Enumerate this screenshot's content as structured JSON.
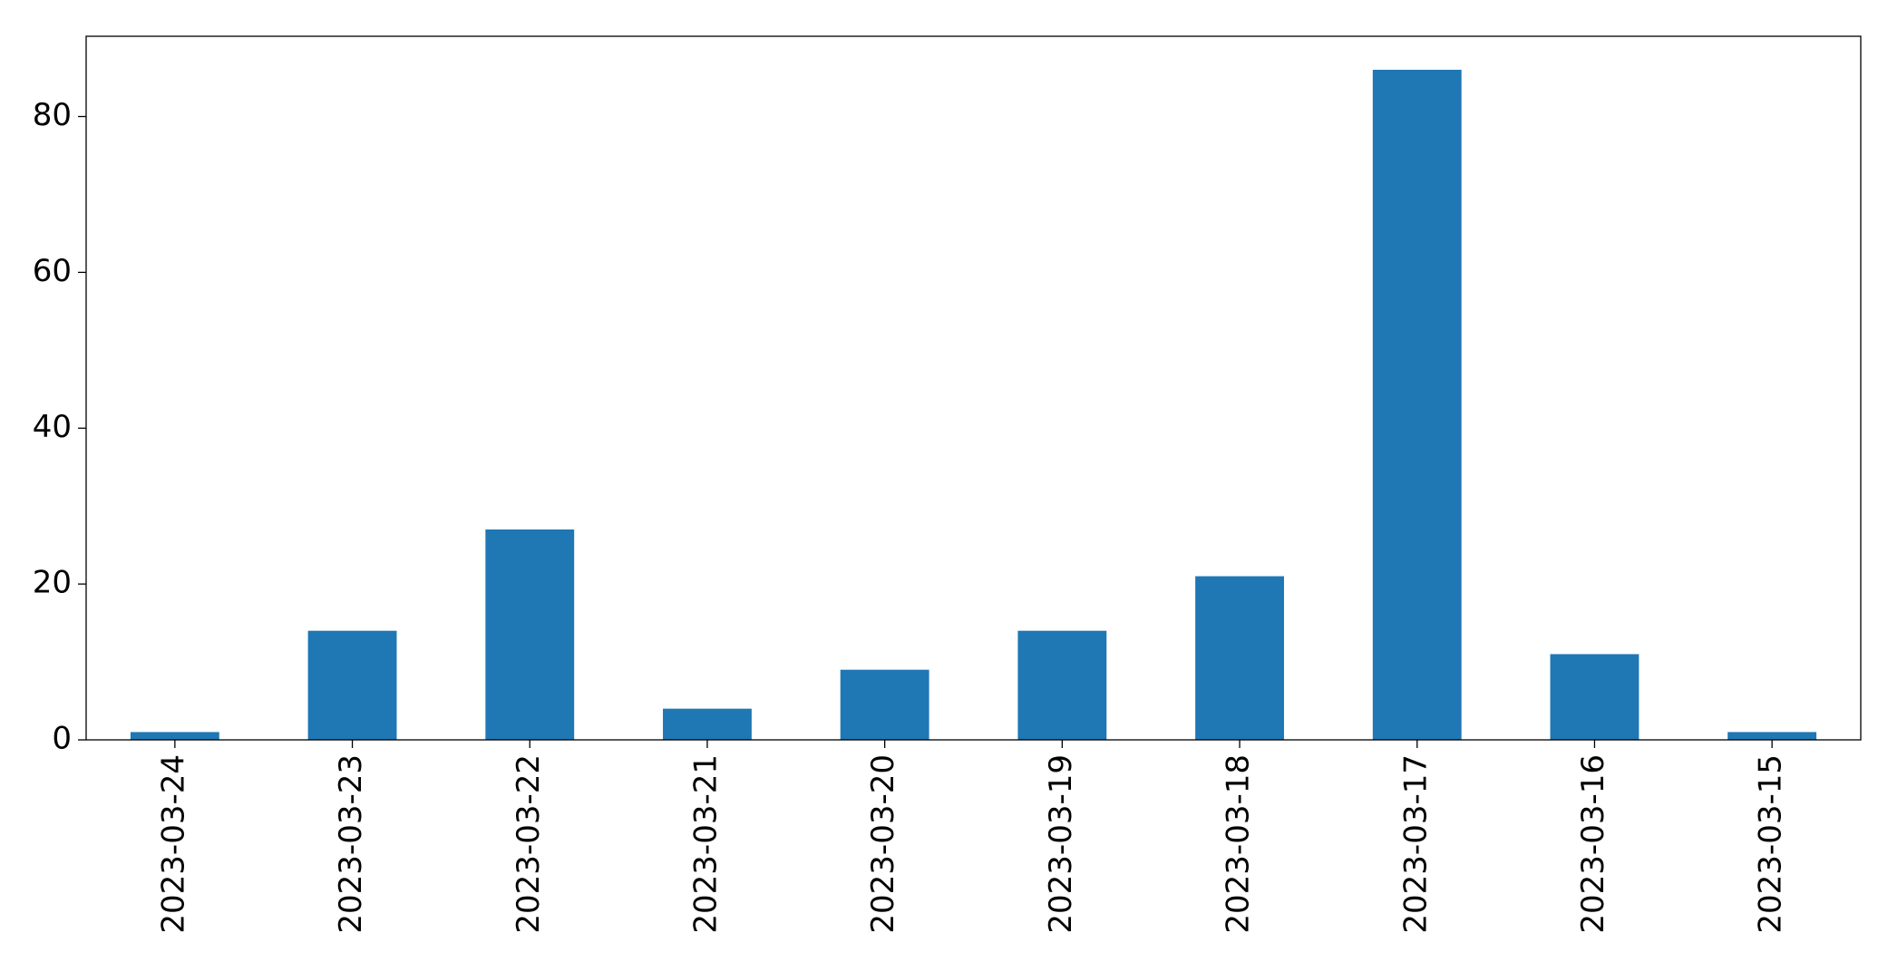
{
  "chart_data": {
    "type": "bar",
    "categories": [
      "2023-03-24",
      "2023-03-23",
      "2023-03-22",
      "2023-03-21",
      "2023-03-20",
      "2023-03-19",
      "2023-03-18",
      "2023-03-17",
      "2023-03-16",
      "2023-03-15"
    ],
    "values": [
      1,
      14,
      27,
      4,
      9,
      14,
      21,
      86,
      11,
      1
    ],
    "color": "#1f77b4",
    "ylim": [
      0,
      90.3
    ],
    "yticks": [
      0,
      20,
      40,
      60,
      80
    ],
    "grid": false
  }
}
